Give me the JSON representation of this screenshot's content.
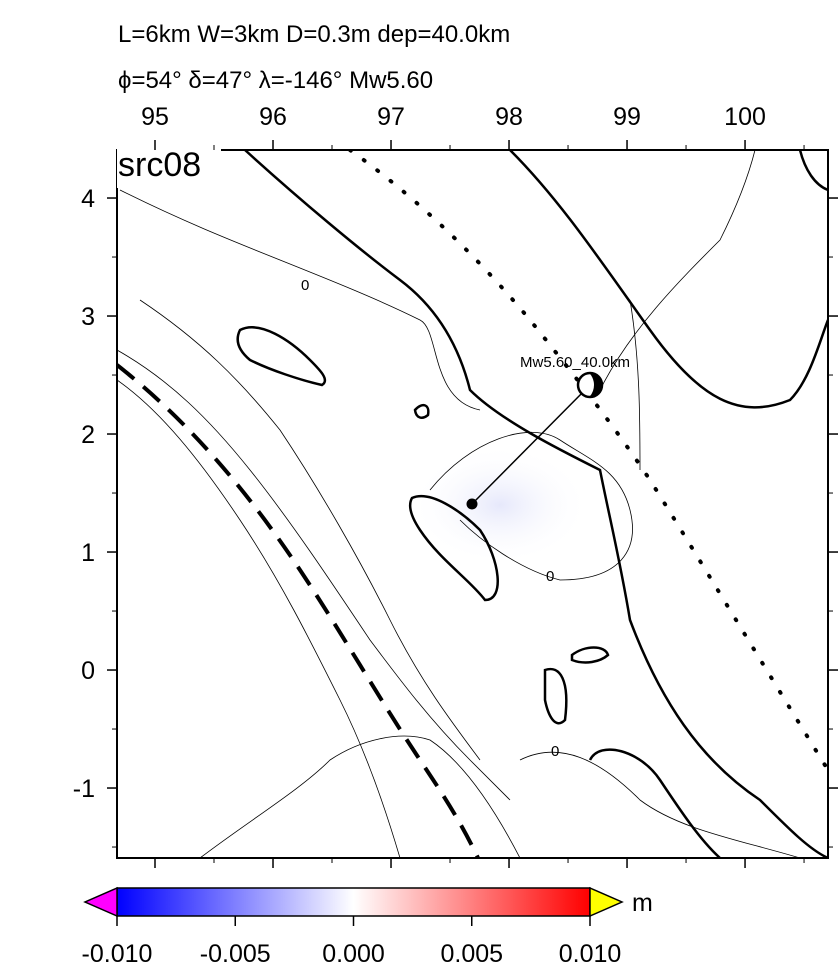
{
  "map": {
    "title_lines": [
      "L=6km W=3km D=0.3m dep=40.0km",
      "ϕ=54° δ=47° λ=-146° Mw5.60"
    ],
    "panel_label": "src08",
    "xlim": [
      94.678,
      100.703
    ],
    "ylim": [
      -1.593,
      4.407
    ],
    "xticks": [
      95,
      96,
      97,
      98,
      99,
      100
    ],
    "yticks": [
      -1,
      0,
      1,
      2,
      3,
      4
    ],
    "x_minor_ticks": [
      95.5,
      96.5,
      97.5,
      98.5,
      99.5,
      100.5
    ],
    "y_minor_ticks": [
      -1.5,
      -0.5,
      0.5,
      1.5,
      2.5,
      3.5
    ],
    "annotation": "Mw5.60_40.0km",
    "contour_labels": [
      "0",
      "0",
      "0"
    ],
    "colorbar": {
      "lim": [
        -0.01,
        0.01
      ],
      "ticks": [
        {
          "value": -0.01,
          "label": "-0.010"
        },
        {
          "value": -0.005,
          "label": "-0.005"
        },
        {
          "value": 0,
          "label": "0.000"
        },
        {
          "value": 0.005,
          "label": "0.005"
        },
        {
          "value": 0.01,
          "label": "0.010"
        }
      ],
      "unit": "m"
    }
  }
}
